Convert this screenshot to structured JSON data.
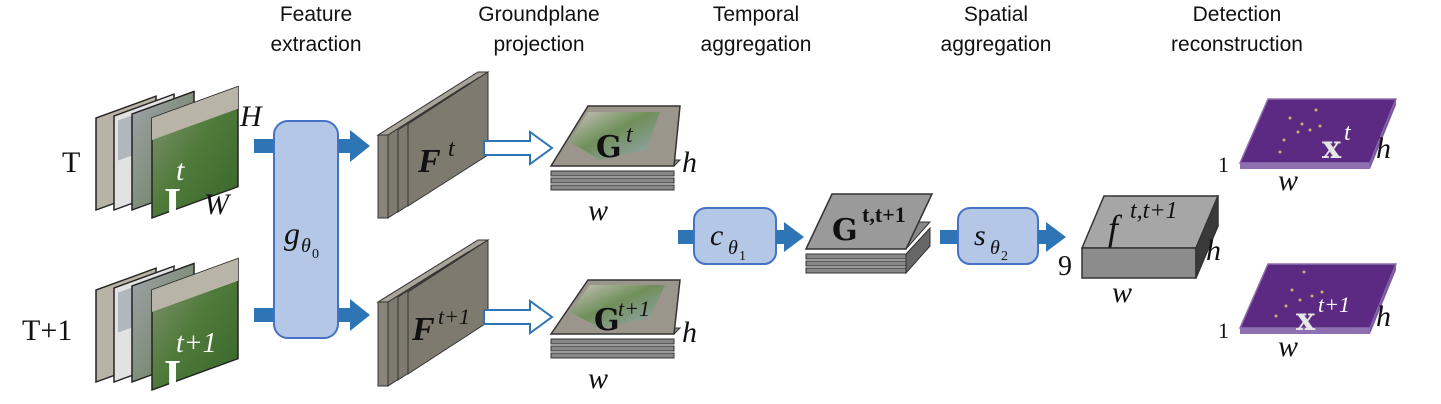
{
  "stages": [
    {
      "line1": "Feature",
      "line2": "extraction"
    },
    {
      "line1": "Groundplane",
      "line2": "projection"
    },
    {
      "line1": "Temporal",
      "line2": "aggregation"
    },
    {
      "line1": "Spatial",
      "line2": "aggregation"
    },
    {
      "line1": "Detection",
      "line2": "reconstruction"
    }
  ],
  "inputs": {
    "top": {
      "label": "T",
      "frame_sym": "I",
      "frame_sup": "t"
    },
    "bottom": {
      "label": "T+1",
      "frame_sym": "I",
      "frame_sup": "t+1"
    },
    "dim_h": "H",
    "dim_w": "W"
  },
  "encoder": {
    "sym": "g",
    "sub": "θ",
    "subsub": "0"
  },
  "features": {
    "top": {
      "sym": "F",
      "sup": "t"
    },
    "bottom": {
      "sym": "F",
      "sup": "t+1"
    }
  },
  "groundplane": {
    "top": {
      "sym": "G",
      "sup": "t"
    },
    "bottom": {
      "sym": "G",
      "sup": "t+1"
    },
    "dim_h": "h",
    "dim_w": "w"
  },
  "temporal": {
    "sym": "c",
    "sub": "θ",
    "subsub": "1"
  },
  "aggregate": {
    "sym": "G",
    "sup": "t,t+1"
  },
  "spatial": {
    "sym": "s",
    "sub": "θ",
    "subsub": "2"
  },
  "output_block": {
    "sym": "f",
    "sup": "t,t+1",
    "channels": "9",
    "dim_h": "h",
    "dim_w": "w"
  },
  "detections": {
    "top": {
      "sym": "x",
      "sup": "t",
      "channels": "1"
    },
    "bottom": {
      "sym": "x",
      "sup": "t+1",
      "channels": "1"
    },
    "dim_h": "h",
    "dim_w": "w"
  },
  "colors": {
    "arrow": "#2e75b6",
    "module_fill": "#b4c7e7",
    "module_stroke": "#4472c4",
    "feature_front": "#7f7a70",
    "feature_top": "#a9a49a",
    "output_top": "#a6a6a6",
    "output_front": "#8c8c8c",
    "output_side": "#3a3a3a",
    "detection": "#5c2a82",
    "detection_edge": "#8e6fb0"
  }
}
